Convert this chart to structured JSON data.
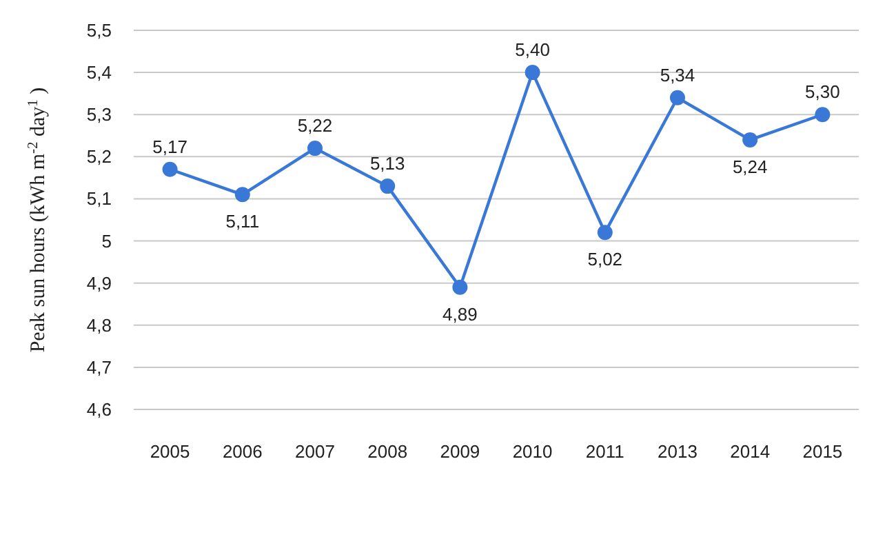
{
  "chart_data": {
    "type": "line",
    "ylabel": "Peak sun hours  (kWh m$^{-2}$ day$^{1}$ )",
    "categories": [
      "2005",
      "2006",
      "2007",
      "2008",
      "2009",
      "2010",
      "2011",
      "2013",
      "2014",
      "2015"
    ],
    "series": [
      {
        "color": "#3a78d8",
        "values": [
          5.17,
          5.11,
          5.22,
          5.13,
          4.89,
          5.4,
          5.02,
          5.34,
          5.24,
          5.3
        ],
        "value_labels": [
          "5,17",
          "5,11",
          "5,22",
          "5,13",
          "4,89",
          "5,40",
          "5,02",
          "5,34",
          "5,24",
          "5,30"
        ]
      }
    ],
    "ylim": [
      4.6,
      5.5
    ],
    "yticks": [
      {
        "value": 4.6,
        "label": "4,6"
      },
      {
        "value": 4.7,
        "label": "4,7"
      },
      {
        "value": 4.8,
        "label": "4,8"
      },
      {
        "value": 4.9,
        "label": "4,9"
      },
      5,
      {
        "value": 5.1,
        "label": "5,1"
      },
      {
        "value": 5.2,
        "label": "5,2"
      },
      {
        "value": 5.3,
        "label": "5,3"
      },
      {
        "value": 5.4,
        "label": "5,4"
      },
      {
        "value": 5.5,
        "label": "5,5"
      }
    ],
    "grid": "y",
    "marker": "circle",
    "line_style": "solid"
  }
}
